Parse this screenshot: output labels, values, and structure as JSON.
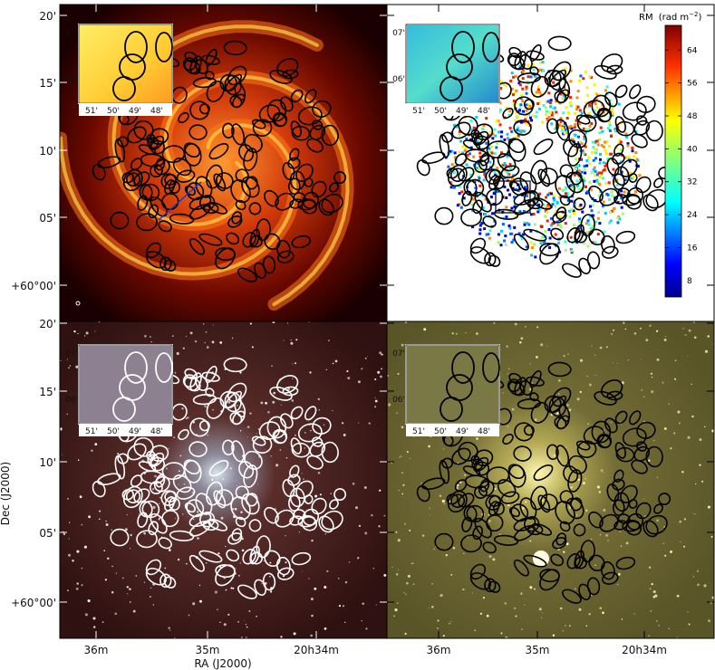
{
  "figure": {
    "panels": [
      {
        "id": "radio-continuum",
        "style": "heat",
        "ellipse_color": "#000000"
      },
      {
        "id": "rotation-measure",
        "style": "rm",
        "ellipse_color": "#000000"
      },
      {
        "id": "optical-dss",
        "style": "optical",
        "ellipse_color": "#ffffff"
      },
      {
        "id": "halpha",
        "style": "halpha",
        "ellipse_color": "#000000"
      }
    ],
    "dec_ticks": [
      "20'",
      "15'",
      "10'",
      "05'",
      "+60°00'"
    ],
    "ra_ticks": [
      "36m",
      "35m",
      "20h34m"
    ],
    "inset_dec_ticks": [
      "07'",
      "06'"
    ],
    "inset_ra_ticks": [
      "51'",
      "50'",
      "49'",
      "48'"
    ],
    "xlabel": "RA (J2000)",
    "ylabel": "Dec (J2000)",
    "colorbar": {
      "label": "RM",
      "unit": "(rad m",
      "unit_exp": "−2",
      "unit_close": ")",
      "ticks": [
        "64",
        "56",
        "48",
        "40",
        "32",
        "24",
        "16",
        "8"
      ],
      "min": 4,
      "max": 70
    }
  },
  "colors": {
    "heat_dark": "#1a0000",
    "heat_mid": "#b01a00",
    "heat_bright": "#ffcc33",
    "optical_bg": "#3a1512",
    "halpha_bg": "#6b6632",
    "rm_blue": "#0000aa",
    "rm_red": "#aa0000"
  }
}
